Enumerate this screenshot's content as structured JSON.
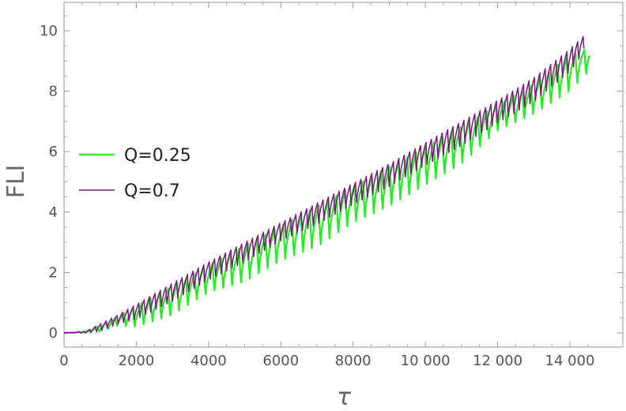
{
  "chart_data": {
    "type": "line",
    "title": "",
    "xlabel": "τ",
    "ylabel": "FLI",
    "xlim": [
      0,
      14900
    ],
    "ylim": [
      -0.5,
      11
    ],
    "x_ticks": [
      0,
      2000,
      4000,
      6000,
      8000,
      10000,
      12000,
      14000
    ],
    "x_tick_labels": [
      "0",
      "2000",
      "4000",
      "6000",
      "8000",
      "10 000",
      "12 000",
      "14 000"
    ],
    "y_ticks": [
      0,
      2,
      4,
      6,
      8,
      10
    ],
    "y_tick_labels": [
      "0",
      "2",
      "4",
      "6",
      "8",
      "10"
    ],
    "grid": false,
    "legend_position": "left-middle",
    "series": [
      {
        "name": "Q=0.25",
        "color": "#22ee22",
        "x_end": 14550,
        "oscillation_period": 245,
        "x": [
          0,
          600,
          1000,
          1500,
          2000,
          3000,
          4000,
          5000,
          6000,
          7000,
          8000,
          9000,
          10000,
          11000,
          12000,
          13000,
          14000,
          14550
        ],
        "y_upper": [
          0,
          0.05,
          0.25,
          0.55,
          0.9,
          1.55,
          2.25,
          2.9,
          3.55,
          4.2,
          4.85,
          5.5,
          6.15,
          6.85,
          7.55,
          8.25,
          9.2,
          9.45
        ],
        "y_lower": [
          0,
          0.0,
          0.05,
          0.25,
          0.2,
          0.6,
          1.35,
          1.7,
          2.4,
          2.85,
          3.65,
          4.2,
          4.9,
          5.6,
          6.7,
          7.25,
          8.0,
          8.7
        ]
      },
      {
        "name": "Q=0.7",
        "color": "#7a1a7a",
        "x_end": 14400,
        "oscillation_period": 150,
        "x": [
          0,
          600,
          1000,
          1500,
          2000,
          3000,
          4000,
          5000,
          6000,
          7000,
          8000,
          9000,
          10000,
          11000,
          12000,
          13000,
          14000,
          14400
        ],
        "y_upper": [
          0,
          0.05,
          0.3,
          0.6,
          0.95,
          1.65,
          2.35,
          3.0,
          3.65,
          4.3,
          4.95,
          5.6,
          6.3,
          7.0,
          7.7,
          8.45,
          9.4,
          9.85
        ],
        "y_lower": [
          0,
          0.0,
          0.05,
          0.3,
          0.45,
          1.05,
          1.75,
          2.35,
          3.05,
          3.6,
          4.25,
          4.85,
          5.55,
          6.2,
          6.95,
          7.65,
          8.65,
          9.3
        ]
      }
    ]
  }
}
